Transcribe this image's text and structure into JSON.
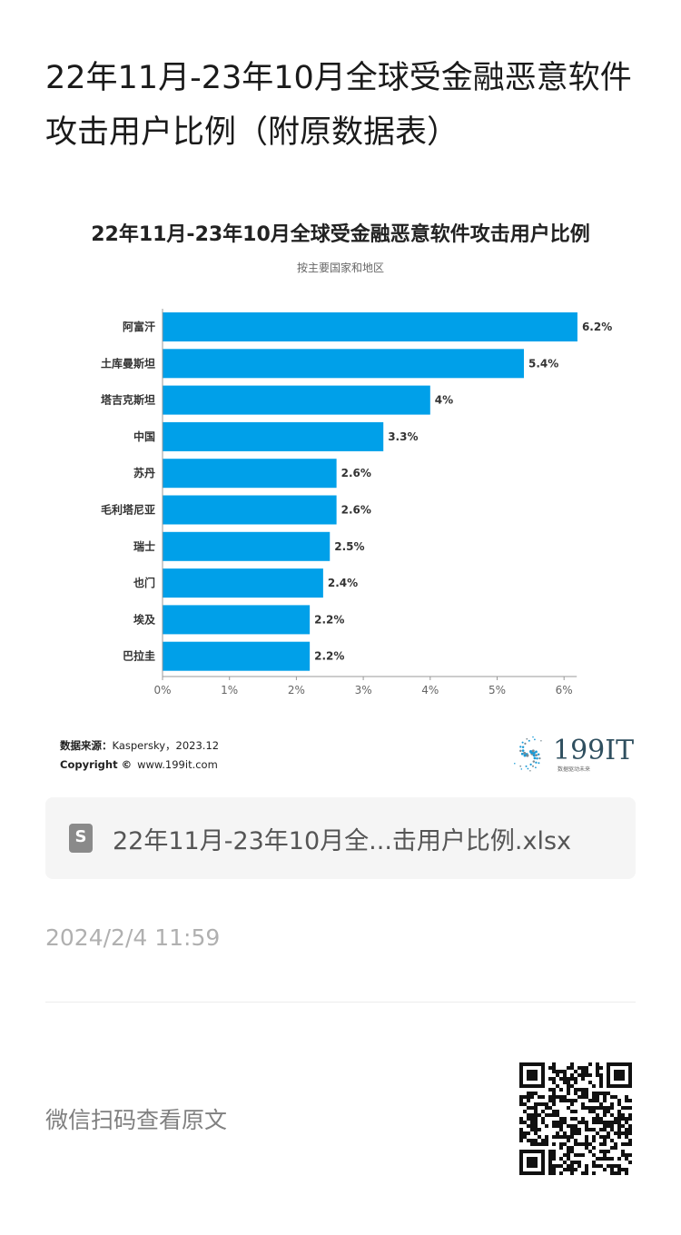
{
  "article": {
    "title": "22年11月-23年10月全球受金融恶意软件攻击用户比例（附原数据表）",
    "attachment_icon": "S",
    "attachment_name": "22年11月-23年10月全...击用户比例.xlsx",
    "date": "2024/2/4 11:59",
    "qr_hint": "微信扫码查看原文"
  },
  "chart_data": {
    "type": "bar",
    "orientation": "horizontal",
    "title": "22年11月-23年10月全球受金融恶意软件攻击用户比例",
    "subtitle": "按主要国家和地区",
    "categories": [
      "阿富汗",
      "土库曼斯坦",
      "塔吉克斯坦",
      "中国",
      "苏丹",
      "毛利塔尼亚",
      "瑞士",
      "也门",
      "埃及",
      "巴拉圭"
    ],
    "values": [
      6.2,
      5.4,
      4,
      3.3,
      2.6,
      2.6,
      2.5,
      2.4,
      2.2,
      2.2
    ],
    "value_labels": [
      "6.2%",
      "5.4%",
      "4%",
      "3.3%",
      "2.6%",
      "2.6%",
      "2.5%",
      "2.4%",
      "2.2%",
      "2.2%"
    ],
    "x_ticks": [
      "0%",
      "1%",
      "2%",
      "3%",
      "4%",
      "5%",
      "6%"
    ],
    "xlim": [
      0,
      6.2
    ],
    "grid": false,
    "bar_color": "#00a0e9",
    "source_label": "数据来源：",
    "source_value": "Kaspersky，2023.12",
    "copyright_label": "Copyright ©",
    "copyright_value": "www.199it.com",
    "logo_text": "199IT",
    "logo_tagline": "数据驱动未来"
  },
  "colors": {
    "bar": "#00a0e9",
    "logo_dots": "#1a9bd7"
  },
  "icons": [
    "file-s-icon",
    "logo-dots-icon",
    "qr-code"
  ]
}
